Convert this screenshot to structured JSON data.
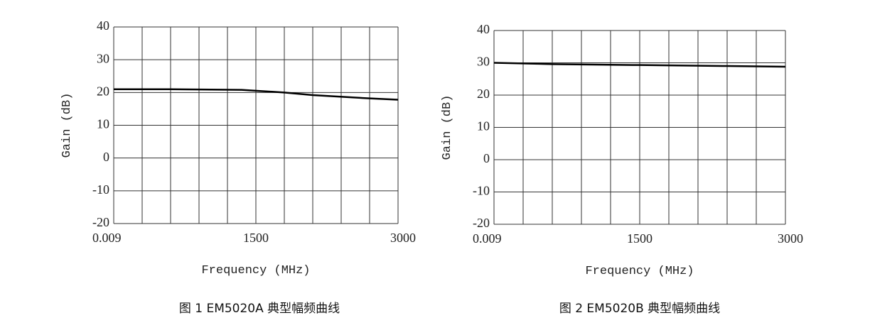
{
  "chart_data": [
    {
      "type": "line",
      "caption": "图 1   EM5020A 典型幅频曲线",
      "xlabel": "Frequency (MHz)",
      "ylabel": "Gain (dB)",
      "xlim": [
        0.009,
        3000
      ],
      "xticks": [
        0.009,
        1500,
        3000
      ],
      "x_minor_grid": [
        300,
        600,
        900,
        1200,
        1800,
        2100,
        2400,
        2700
      ],
      "ylim": [
        -20,
        40
      ],
      "yticks": [
        -20,
        -10,
        0,
        10,
        20,
        30,
        40
      ],
      "grid": true,
      "series": [
        {
          "color": "#000000",
          "x": [
            0.009,
            600,
            1350,
            1800,
            2100,
            2700,
            3000
          ],
          "values": [
            21,
            21,
            20.8,
            20,
            19.2,
            18.2,
            17.8
          ]
        }
      ]
    },
    {
      "type": "line",
      "caption": "图 2 EM5020B 典型幅频曲线",
      "xlabel": "Frequency (MHz)",
      "ylabel": "Gain (dB)",
      "xlim": [
        0.009,
        3000
      ],
      "xticks": [
        0.009,
        1500,
        3000
      ],
      "x_minor_grid": [
        300,
        600,
        900,
        1200,
        1800,
        2100,
        2400,
        2700
      ],
      "ylim": [
        -20,
        40
      ],
      "yticks": [
        -20,
        -10,
        0,
        10,
        20,
        30,
        40
      ],
      "grid": true,
      "series": [
        {
          "color": "#000000",
          "x": [
            0.009,
            600,
            1500,
            2400,
            3000
          ],
          "values": [
            30,
            29.6,
            29.3,
            29,
            28.8
          ]
        }
      ]
    }
  ]
}
